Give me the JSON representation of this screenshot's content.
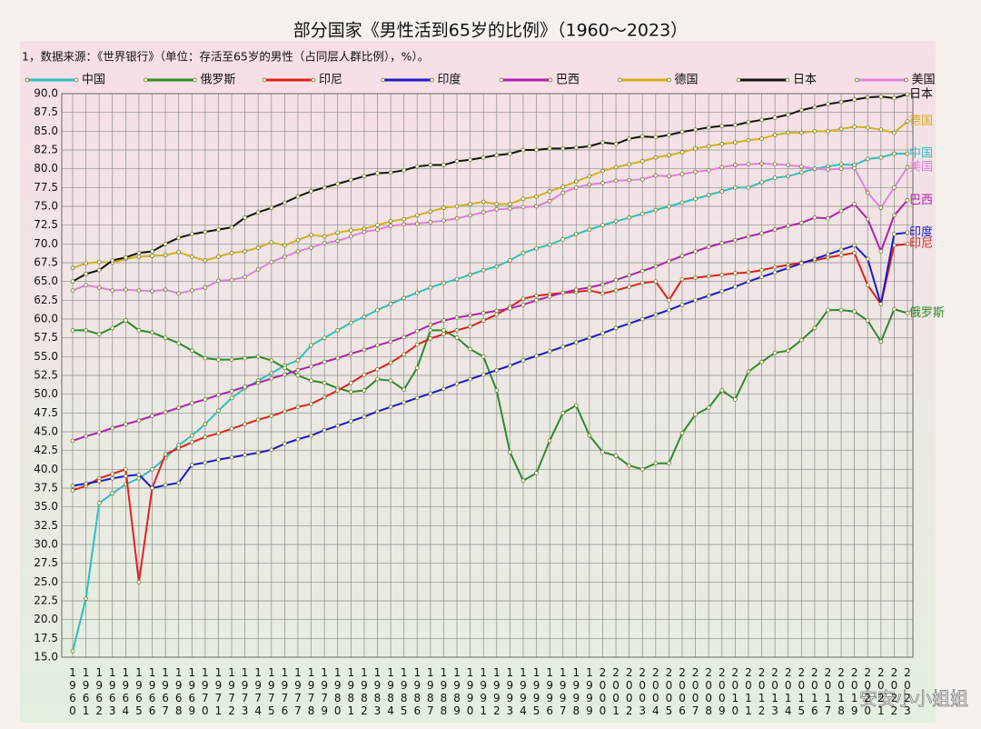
{
  "chart_data": {
    "type": "line",
    "title": "部分国家《男性活到65岁的比例》（1960～2023）",
    "subtitle": "1，数据来源：《世界银行》（单位：存活至65岁的男性（占同层人群比例），%）。",
    "watermark": "安安小小姐姐",
    "categories": [
      "1960",
      "1961",
      "1962",
      "1963",
      "1964",
      "1965",
      "1966",
      "1967",
      "1968",
      "1969",
      "1970",
      "1971",
      "1972",
      "1973",
      "1974",
      "1975",
      "1976",
      "1977",
      "1978",
      "1979",
      "1980",
      "1981",
      "1982",
      "1983",
      "1984",
      "1985",
      "1986",
      "1987",
      "1988",
      "1989",
      "1990",
      "1991",
      "1992",
      "1993",
      "1994",
      "1995",
      "1996",
      "1997",
      "1998",
      "1999",
      "2000",
      "2001",
      "2002",
      "2003",
      "2004",
      "2005",
      "2006",
      "2007",
      "2008",
      "2009",
      "2010",
      "2011",
      "2012",
      "2013",
      "2014",
      "2015",
      "2016",
      "2017",
      "2018",
      "2019",
      "2020",
      "2021",
      "2022",
      "2023"
    ],
    "ylim": [
      15,
      90
    ],
    "yticks": [
      {
        "value": 15,
        "label": "15.0"
      },
      17.5,
      {
        "value": 20,
        "label": "20.0"
      },
      22.5,
      {
        "value": 25,
        "label": "25.0"
      },
      27.5,
      {
        "value": 30,
        "label": "30.0"
      },
      32.5,
      {
        "value": 35,
        "label": "35.0"
      },
      37.5,
      {
        "value": 40,
        "label": "40.0"
      },
      42.5,
      {
        "value": 45,
        "label": "45.0"
      },
      47.5,
      {
        "value": 50,
        "label": "50.0"
      },
      52.5,
      {
        "value": 55,
        "label": "55.0"
      },
      57.5,
      {
        "value": 60,
        "label": "60.0"
      },
      62.5,
      {
        "value": 65,
        "label": "65.0"
      },
      67.5,
      {
        "value": 70,
        "label": "70.0"
      },
      72.5,
      {
        "value": 75,
        "label": "75.0"
      },
      77.5,
      {
        "value": 80,
        "label": "80.0"
      },
      82.5,
      {
        "value": 85,
        "label": "85.0"
      },
      87.5,
      {
        "value": 90,
        "label": "90.0"
      }
    ],
    "grid": true,
    "series": [
      {
        "name": "中国",
        "color": "#2cc0c0",
        "values": [
          15.8,
          22.8,
          35.5,
          36.8,
          38.0,
          38.8,
          40.0,
          41.5,
          43.2,
          44.5,
          46.0,
          47.8,
          49.5,
          50.8,
          51.8,
          52.8,
          53.8,
          54.5,
          56.5,
          57.5,
          58.5,
          59.5,
          60.3,
          61.2,
          62.0,
          62.8,
          63.5,
          64.2,
          64.8,
          65.3,
          65.9,
          66.5,
          67.0,
          67.8,
          68.8,
          69.4,
          69.9,
          70.6,
          71.3,
          71.9,
          72.5,
          73.0,
          73.5,
          74.0,
          74.5,
          75.0,
          75.5,
          76.0,
          76.5,
          77.0,
          77.5,
          77.5,
          78.2,
          78.8,
          79.0,
          79.5,
          80.0,
          80.3,
          80.6,
          80.5,
          81.3,
          81.5,
          82.0,
          82.0
        ]
      },
      {
        "name": "俄罗斯",
        "color": "#2a8c2a",
        "values": [
          58.5,
          58.5,
          58.0,
          58.8,
          59.8,
          58.5,
          58.2,
          57.5,
          56.8,
          55.8,
          54.8,
          54.6,
          54.6,
          54.8,
          55.0,
          54.5,
          53.5,
          52.5,
          51.8,
          51.5,
          50.8,
          50.3,
          50.5,
          52.0,
          51.8,
          50.6,
          53.5,
          58.5,
          58.5,
          57.5,
          56.0,
          55.0,
          50.5,
          42.3,
          38.5,
          39.5,
          43.8,
          47.5,
          48.5,
          44.5,
          42.3,
          41.8,
          40.5,
          40.0,
          40.8,
          40.8,
          44.8,
          47.3,
          48.2,
          50.5,
          49.3,
          53.0,
          54.3,
          55.5,
          55.8,
          57.2,
          58.8,
          61.2,
          61.2,
          61.0,
          59.8,
          57.0,
          61.3,
          60.8
        ]
      },
      {
        "name": "印尼",
        "color": "#e02020",
        "values": [
          37.2,
          37.8,
          38.8,
          39.4,
          40.0,
          25.0,
          37.5,
          42.0,
          42.8,
          43.6,
          44.3,
          44.8,
          45.4,
          46.0,
          46.6,
          47.1,
          47.7,
          48.3,
          48.7,
          49.6,
          50.5,
          51.5,
          52.6,
          53.3,
          54.2,
          55.3,
          56.6,
          57.4,
          58.0,
          58.5,
          59.0,
          59.8,
          60.6,
          61.6,
          62.7,
          63.1,
          63.3,
          63.5,
          63.6,
          63.8,
          63.4,
          63.8,
          64.3,
          64.8,
          65.0,
          62.5,
          65.3,
          65.5,
          65.7,
          65.9,
          66.1,
          66.2,
          66.5,
          66.9,
          67.2,
          67.5,
          67.8,
          68.2,
          68.5,
          68.8,
          64.5,
          62.0,
          69.8,
          70.0
        ]
      },
      {
        "name": "印度",
        "color": "#1a1acc",
        "values": [
          37.8,
          38.1,
          38.4,
          38.8,
          39.1,
          39.3,
          37.5,
          37.9,
          38.2,
          40.6,
          40.9,
          41.3,
          41.6,
          41.9,
          42.2,
          42.6,
          43.4,
          44.0,
          44.5,
          45.2,
          45.8,
          46.4,
          47.0,
          47.7,
          48.3,
          48.9,
          49.5,
          50.1,
          50.7,
          51.4,
          52.0,
          52.6,
          53.2,
          53.8,
          54.5,
          55.1,
          55.7,
          56.3,
          56.9,
          57.5,
          58.1,
          58.8,
          59.4,
          60.0,
          60.6,
          61.2,
          61.9,
          62.5,
          63.1,
          63.7,
          64.3,
          65.0,
          65.6,
          66.2,
          66.8,
          67.4,
          68.0,
          68.6,
          69.2,
          69.8,
          68.0,
          62.0,
          71.3,
          71.5
        ]
      },
      {
        "name": "巴西",
        "color": "#b020b0",
        "values": [
          43.8,
          44.4,
          44.9,
          45.5,
          46.0,
          46.5,
          47.1,
          47.6,
          48.2,
          48.8,
          49.3,
          49.9,
          50.4,
          51.0,
          51.5,
          52.1,
          52.6,
          53.2,
          53.7,
          54.3,
          54.8,
          55.4,
          55.9,
          56.5,
          57.0,
          57.6,
          58.4,
          59.2,
          59.8,
          60.2,
          60.5,
          60.8,
          61.1,
          61.4,
          61.9,
          62.5,
          63.0,
          63.5,
          63.9,
          64.2,
          64.6,
          65.2,
          65.8,
          66.4,
          67.0,
          67.7,
          68.4,
          69.0,
          69.6,
          70.1,
          70.5,
          71.0,
          71.4,
          71.9,
          72.4,
          72.8,
          73.5,
          73.4,
          74.4,
          75.3,
          73.3,
          69.0,
          73.8,
          75.8
        ]
      },
      {
        "name": "德国",
        "color": "#d4b020",
        "values": [
          66.8,
          67.4,
          67.6,
          67.5,
          68.0,
          68.3,
          68.4,
          68.5,
          68.9,
          68.3,
          67.8,
          68.3,
          68.8,
          69.0,
          69.5,
          70.2,
          69.8,
          70.5,
          71.2,
          71.0,
          71.5,
          71.8,
          72.0,
          72.5,
          73.0,
          73.3,
          73.8,
          74.3,
          74.8,
          75.0,
          75.3,
          75.6,
          75.3,
          75.3,
          76.0,
          76.3,
          77.0,
          77.6,
          78.3,
          79.0,
          79.7,
          80.2,
          80.6,
          81.0,
          81.5,
          81.8,
          82.2,
          82.7,
          83.0,
          83.3,
          83.5,
          83.8,
          84.0,
          84.5,
          84.8,
          84.8,
          85.0,
          85.0,
          85.3,
          85.6,
          85.5,
          85.2,
          84.8,
          86.3
        ]
      },
      {
        "name": "日本",
        "color": "#111111",
        "values": [
          65.0,
          66.0,
          66.5,
          67.8,
          68.2,
          68.8,
          69.0,
          70.0,
          70.8,
          71.3,
          71.6,
          71.9,
          72.2,
          73.5,
          74.2,
          74.8,
          75.5,
          76.3,
          77.0,
          77.5,
          78.0,
          78.5,
          79.0,
          79.4,
          79.5,
          79.8,
          80.3,
          80.5,
          80.5,
          81.0,
          81.2,
          81.5,
          81.8,
          82.0,
          82.5,
          82.5,
          82.7,
          82.7,
          82.8,
          83.0,
          83.5,
          83.3,
          84.0,
          84.3,
          84.2,
          84.5,
          84.9,
          85.2,
          85.5,
          85.7,
          85.8,
          86.2,
          86.5,
          86.8,
          87.2,
          87.8,
          88.2,
          88.6,
          88.9,
          89.2,
          89.5,
          89.6,
          89.4,
          89.9
        ]
      },
      {
        "name": "美国",
        "color": "#e080e0",
        "values": [
          63.8,
          64.5,
          64.2,
          63.8,
          63.9,
          63.8,
          63.7,
          63.9,
          63.4,
          63.8,
          64.2,
          65.1,
          65.2,
          65.6,
          66.6,
          67.6,
          68.3,
          69.0,
          69.5,
          70.1,
          70.4,
          71.0,
          71.6,
          71.9,
          72.4,
          72.6,
          72.7,
          72.9,
          73.1,
          73.4,
          73.8,
          74.2,
          74.6,
          74.7,
          74.9,
          75.0,
          75.7,
          76.8,
          77.5,
          77.9,
          78.1,
          78.4,
          78.5,
          78.6,
          79.1,
          79.0,
          79.3,
          79.6,
          79.8,
          80.2,
          80.5,
          80.6,
          80.7,
          80.6,
          80.5,
          80.3,
          80.0,
          79.9,
          80.0,
          80.1,
          76.8,
          74.8,
          77.5,
          80.2
        ]
      }
    ]
  }
}
